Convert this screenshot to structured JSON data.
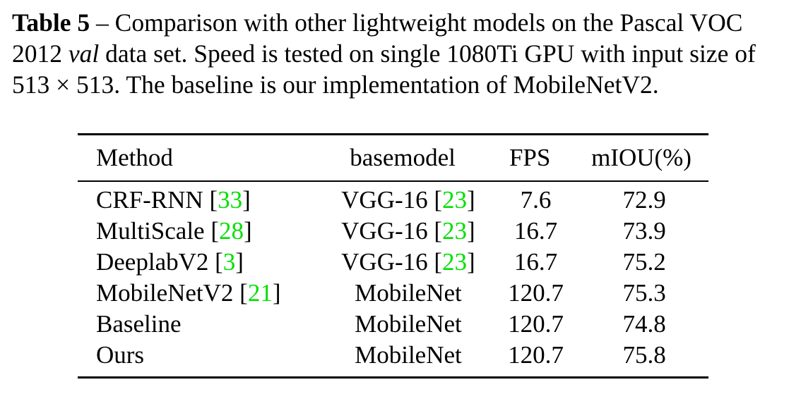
{
  "caption": {
    "label": "Table 5",
    "line1_rest": " – Comparison with other lightweight models on the Pascal VOC",
    "line2_pre": "2012 ",
    "line2_ital": "val",
    "line2_post": " data set. Speed is tested on single 1080Ti GPU with input size of",
    "line3": "513 × 513. The baseline is our implementation of MobileNetV2."
  },
  "table": {
    "headers": {
      "method": "Method",
      "basemodel": "basemodel",
      "fps": "FPS",
      "miou": "mIOU(%)"
    },
    "rows": [
      {
        "method": "CRF-RNN",
        "method_ref": "33",
        "base": "VGG-16",
        "base_ref": "23",
        "fps": "7.6",
        "miou": "72.9"
      },
      {
        "method": "MultiScale",
        "method_ref": "28",
        "base": "VGG-16",
        "base_ref": "23",
        "fps": "16.7",
        "miou": "73.9"
      },
      {
        "method": "DeeplabV2",
        "method_ref": "3",
        "base": "VGG-16",
        "base_ref": "23",
        "fps": "16.7",
        "miou": "75.2"
      },
      {
        "method": "MobileNetV2",
        "method_ref": "21",
        "base": "MobileNet",
        "base_ref": "",
        "fps": "120.7",
        "miou": "75.3"
      },
      {
        "method": "Baseline",
        "method_ref": "",
        "base": "MobileNet",
        "base_ref": "",
        "fps": "120.7",
        "miou": "74.8"
      },
      {
        "method": "Ours",
        "method_ref": "",
        "base": "MobileNet",
        "base_ref": "",
        "fps": "120.7",
        "miou": "75.8"
      }
    ]
  },
  "colors": {
    "citation": "#00e000"
  }
}
